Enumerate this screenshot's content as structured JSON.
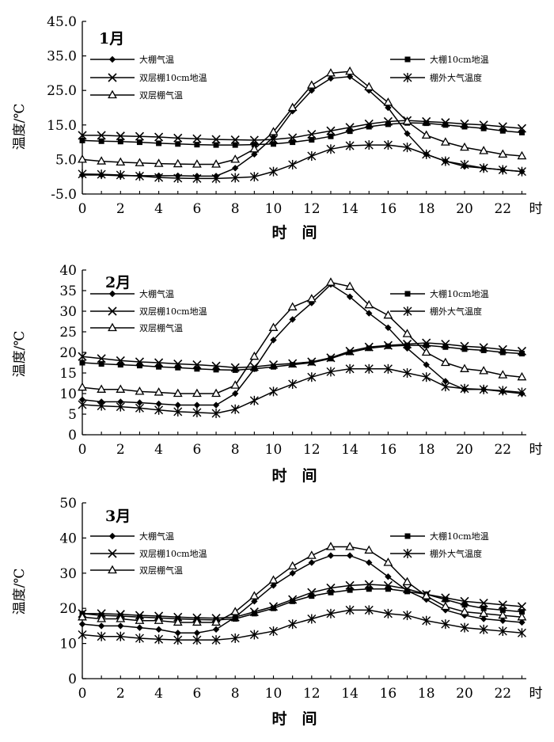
{
  "chart_data": [
    {
      "type": "line",
      "title": "1月",
      "ylabel": "温度/℃",
      "xlabel": "时　间",
      "x_unit": "时",
      "ylim": [
        -5,
        45
      ],
      "yticks": [
        -5,
        5,
        15,
        25,
        35,
        45
      ],
      "ytick_labels": [
        "-5.0",
        "5.0",
        "15.0",
        "25.0",
        "35.0",
        "45.0"
      ],
      "xticks": [
        0,
        2,
        4,
        6,
        8,
        10,
        12,
        14,
        16,
        18,
        20,
        22
      ],
      "xtick_labels": [
        "0",
        "2",
        "4",
        "6",
        "8",
        "10",
        "12",
        "14",
        "16",
        "18",
        "20",
        "22"
      ],
      "x": [
        0,
        1,
        2,
        3,
        4,
        5,
        6,
        7,
        8,
        9,
        10,
        11,
        12,
        13,
        14,
        15,
        16,
        17,
        18,
        19,
        20,
        21,
        22,
        23
      ],
      "series": [
        {
          "name": "大棚气温",
          "marker": "diamond",
          "values": [
            0.5,
            0.5,
            0.3,
            0.3,
            0.3,
            0.3,
            0.2,
            0.2,
            2.5,
            6.5,
            11.5,
            19,
            25,
            28.5,
            29,
            25,
            20,
            12.5,
            6.5,
            4.5,
            3,
            2.5,
            2,
            1.5
          ]
        },
        {
          "name": "大棚10cm地温",
          "marker": "square",
          "values": [
            10.5,
            10.3,
            10.2,
            10,
            9.7,
            9.5,
            9.3,
            9.2,
            9.2,
            9.3,
            9.5,
            10,
            10.7,
            11.7,
            13.2,
            14.5,
            15.2,
            15.6,
            15.5,
            15,
            14.5,
            14,
            13.3,
            12.8
          ]
        },
        {
          "name": "双层棚10cm地温",
          "marker": "x",
          "values": [
            12,
            12,
            11.8,
            11.7,
            11.5,
            11.2,
            11,
            10.8,
            10.7,
            10.6,
            10.8,
            11.3,
            12.3,
            13.3,
            14.3,
            15.3,
            16,
            16.3,
            16,
            15.7,
            15.3,
            15,
            14.5,
            14
          ]
        },
        {
          "name": "棚外大气温度",
          "marker": "asterisk",
          "values": [
            0.8,
            0.7,
            0.5,
            0.2,
            -0.2,
            -0.4,
            -0.5,
            -0.5,
            -0.3,
            0,
            1.5,
            3.5,
            6,
            8,
            9,
            9.2,
            9.2,
            8.5,
            6.5,
            4.5,
            3.5,
            2.5,
            2,
            1.5
          ]
        },
        {
          "name": "双层棚气温",
          "marker": "triangle",
          "values": [
            5,
            4.5,
            4.2,
            4,
            3.8,
            3.7,
            3.6,
            3.6,
            5,
            8,
            13,
            20,
            26.5,
            30,
            30.5,
            26,
            21.5,
            16,
            12,
            10,
            8.5,
            7.5,
            6.5,
            6
          ]
        }
      ]
    },
    {
      "type": "line",
      "title": "2月",
      "ylabel": "温度/℃",
      "xlabel": "时　间",
      "x_unit": "时",
      "ylim": [
        0,
        40
      ],
      "yticks": [
        0,
        5,
        10,
        15,
        20,
        25,
        30,
        35,
        40
      ],
      "ytick_labels": [
        "0",
        "5",
        "10",
        "15",
        "20",
        "25",
        "30",
        "35",
        "40"
      ],
      "xticks": [
        0,
        2,
        4,
        6,
        8,
        10,
        12,
        14,
        16,
        18,
        20,
        22
      ],
      "xtick_labels": [
        "0",
        "2",
        "4",
        "6",
        "8",
        "10",
        "12",
        "14",
        "16",
        "18",
        "20",
        "22"
      ],
      "x": [
        0,
        1,
        2,
        3,
        4,
        5,
        6,
        7,
        8,
        9,
        10,
        11,
        12,
        13,
        14,
        15,
        16,
        17,
        18,
        19,
        20,
        21,
        22,
        23
      ],
      "series": [
        {
          "name": "大棚气温",
          "marker": "diamond",
          "values": [
            8.5,
            8,
            8,
            7.8,
            7.5,
            7.2,
            7.2,
            7.2,
            10,
            16,
            23,
            28,
            32,
            36.5,
            33.5,
            29.5,
            26,
            21,
            17,
            13,
            11,
            11,
            10.5,
            10
          ]
        },
        {
          "name": "大棚10cm地温",
          "marker": "square",
          "values": [
            17.5,
            17.2,
            17,
            16.8,
            16.5,
            16.3,
            16,
            15.8,
            15.7,
            16,
            16.5,
            17,
            17.5,
            18.5,
            20,
            21,
            21.5,
            21.7,
            21.7,
            21.3,
            20.8,
            20.5,
            20,
            19.7
          ]
        },
        {
          "name": "双层棚10cm地温",
          "marker": "x",
          "values": [
            19,
            18.5,
            18,
            17.7,
            17.5,
            17.2,
            17,
            16.7,
            16.3,
            16.5,
            17,
            17.3,
            17.7,
            18.7,
            20.3,
            21.3,
            21.7,
            22,
            22.3,
            22,
            21.5,
            21.2,
            20.7,
            20.3
          ]
        },
        {
          "name": "棚外大气温度",
          "marker": "asterisk",
          "values": [
            7.3,
            7,
            6.8,
            6.5,
            6,
            5.6,
            5.4,
            5.2,
            6.2,
            8.3,
            10.5,
            12.3,
            14,
            15.3,
            16,
            16,
            16,
            15,
            14,
            11.7,
            11.2,
            11,
            10.7,
            10.3
          ]
        },
        {
          "name": "双层棚气温",
          "marker": "triangle",
          "values": [
            11.5,
            11,
            11,
            10.5,
            10.3,
            10,
            10,
            10,
            12,
            19,
            26,
            31,
            33,
            37,
            36,
            31.5,
            29,
            24.5,
            20,
            17.5,
            16,
            15.5,
            14.5,
            14
          ]
        }
      ]
    },
    {
      "type": "line",
      "title": "3月",
      "ylabel": "温度/℃",
      "xlabel": "时　间",
      "x_unit": "时",
      "ylim": [
        0,
        50
      ],
      "yticks": [
        0,
        10,
        20,
        30,
        40,
        50
      ],
      "ytick_labels": [
        "0",
        "10",
        "20",
        "30",
        "40",
        "50"
      ],
      "xticks": [
        0,
        2,
        4,
        6,
        8,
        10,
        12,
        14,
        16,
        18,
        20,
        22
      ],
      "xtick_labels": [
        "0",
        "2",
        "4",
        "6",
        "8",
        "10",
        "12",
        "14",
        "16",
        "18",
        "20",
        "22"
      ],
      "x": [
        0,
        1,
        2,
        3,
        4,
        5,
        6,
        7,
        8,
        9,
        10,
        11,
        12,
        13,
        14,
        15,
        16,
        17,
        18,
        19,
        20,
        21,
        22,
        23
      ],
      "series": [
        {
          "name": "大棚气温",
          "marker": "diamond",
          "values": [
            15.5,
            15,
            15,
            14.5,
            14,
            13,
            13,
            14,
            17.5,
            22,
            26.5,
            30,
            33,
            35,
            35,
            33,
            29,
            25,
            22.5,
            19.5,
            18,
            17,
            16.5,
            16
          ]
        },
        {
          "name": "大棚10cm地温",
          "marker": "square",
          "values": [
            18.5,
            18,
            17.8,
            17.5,
            17.3,
            17,
            16.8,
            16.7,
            17,
            18.5,
            20,
            22,
            23.5,
            24.5,
            25.2,
            25.5,
            25.5,
            24.8,
            24,
            22.5,
            21,
            20,
            19.5,
            19
          ]
        },
        {
          "name": "双层棚10cm地温",
          "marker": "x",
          "values": [
            18.5,
            18.5,
            18.3,
            18,
            17.8,
            17.5,
            17.3,
            17.2,
            17.5,
            19,
            20.5,
            22.5,
            24.5,
            25.8,
            26.5,
            26.8,
            26.5,
            25.5,
            24,
            23,
            22,
            21.5,
            21,
            20.5
          ]
        },
        {
          "name": "棚外大气温度",
          "marker": "asterisk",
          "values": [
            12.5,
            12,
            12,
            11.5,
            11.2,
            11,
            11,
            11,
            11.5,
            12.5,
            13.5,
            15.5,
            17,
            18.5,
            19.5,
            19.5,
            18.5,
            18,
            16.5,
            15.5,
            14.5,
            14,
            13.5,
            13
          ]
        },
        {
          "name": "双层棚气温",
          "marker": "triangle",
          "values": [
            17.5,
            17,
            17,
            16.5,
            16.5,
            16,
            16,
            16,
            19,
            23.5,
            28,
            32,
            35,
            37.5,
            37.5,
            36.5,
            33,
            27.5,
            23.5,
            20.5,
            19,
            18.5,
            18,
            17.5
          ]
        }
      ]
    }
  ]
}
